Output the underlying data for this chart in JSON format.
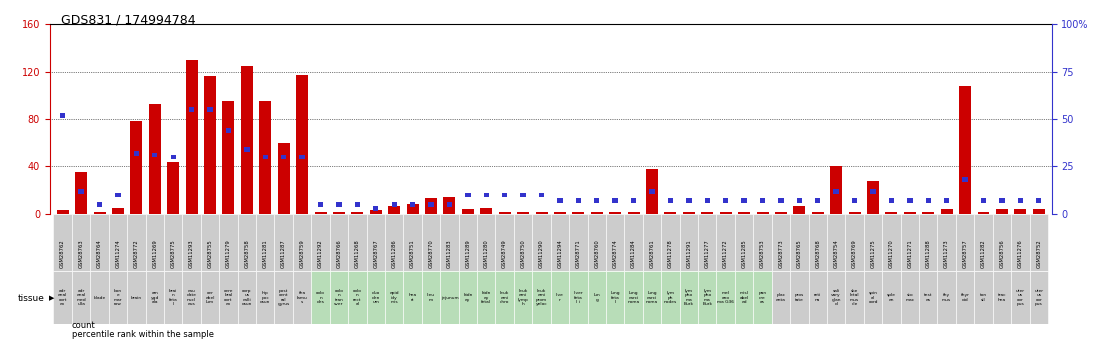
{
  "title": "GDS831 / 174994784",
  "samples": [
    "GSM28762",
    "GSM28763",
    "GSM28764",
    "GSM11274",
    "GSM28772",
    "GSM11269",
    "GSM28775",
    "GSM11293",
    "GSM28755",
    "GSM11279",
    "GSM28758",
    "GSM11281",
    "GSM11287",
    "GSM28759",
    "GSM11292",
    "GSM28766",
    "GSM11268",
    "GSM28767",
    "GSM11286",
    "GSM28751",
    "GSM28770",
    "GSM11283",
    "GSM11289",
    "GSM11280",
    "GSM28749",
    "GSM28750",
    "GSM11290",
    "GSM11294",
    "GSM28771",
    "GSM28760",
    "GSM28774",
    "GSM11284",
    "GSM28761",
    "GSM11278",
    "GSM11291",
    "GSM11277",
    "GSM11272",
    "GSM11285",
    "GSM28753",
    "GSM28773",
    "GSM28765",
    "GSM28768",
    "GSM28754",
    "GSM28769",
    "GSM11275",
    "GSM11270",
    "GSM11271",
    "GSM11288",
    "GSM11273",
    "GSM28757",
    "GSM11282",
    "GSM28756",
    "GSM11276",
    "GSM28752"
  ],
  "tissues_line1": [
    "adr",
    "adr",
    "",
    "bon",
    "",
    "am",
    "brai",
    "cau",
    "cer",
    "cere",
    "corp",
    "hip",
    "post",
    "tha",
    "colo",
    "colo",
    "colo",
    "duo",
    "epid",
    "hea",
    "lieu",
    "",
    "kidn",
    "kidn",
    "leuk",
    "leuk",
    "leuk",
    "live",
    "liver",
    "lun",
    "lung",
    "lung",
    "lung",
    "lym",
    "lym",
    "lym",
    "mel",
    "misl",
    "pan",
    "plac",
    "pros",
    "reti",
    "sali",
    "ske",
    "spin",
    "sple",
    "sto",
    "test",
    "thy",
    "thyr",
    "ton",
    "trac",
    "uter",
    "uter"
  ],
  "tissues_line2": [
    "enal",
    "enal",
    "blade",
    "e",
    "brain",
    "ygd",
    "n",
    "date",
    "ebel",
    "bral",
    "us",
    "poc",
    "cent",
    "lamu",
    "n",
    "n",
    "n",
    "den",
    "idy",
    "rt",
    "m",
    "jejunum",
    "ey",
    "ey",
    "emi",
    "emi",
    "emi",
    "r",
    "feta",
    "g",
    "feta",
    "carci",
    "carci",
    "ph",
    "pho",
    "pho",
    "ano",
    "abel",
    "cre",
    "enta",
    "tate",
    "na",
    "vary",
    "letal",
    "al",
    "en",
    "mac",
    "es",
    "mus",
    "oid",
    "sil",
    "hea",
    "us",
    "us"
  ],
  "tissues_line3": [
    "cort",
    "med",
    "",
    "mar",
    "",
    "ala",
    "feta",
    "nucl",
    "lum",
    "cort",
    "calli",
    "osun",
    "ral",
    "s",
    "des",
    "tran",
    "rect",
    "um",
    "mis",
    "",
    "",
    "",
    "",
    "fetal",
    "chro",
    "lymp",
    "prom",
    "",
    "l i",
    "",
    "l",
    "noma",
    "noma",
    "nodes",
    "ma",
    "ma",
    "ma G36",
    "ed",
    "as",
    "",
    "",
    "",
    "glan",
    "mus",
    "cord",
    "",
    "",
    "",
    "",
    "",
    "",
    "",
    "cor",
    "cor"
  ],
  "tissues_line4": [
    "ex",
    "ulla",
    "",
    "row",
    "",
    "",
    "l",
    "eus",
    "",
    "ex",
    "osun",
    "",
    "gyrus",
    "",
    "",
    "sver",
    "al",
    "",
    "",
    "",
    "",
    "",
    "",
    "",
    "",
    "h",
    "yeloc",
    "",
    "",
    "",
    "",
    "",
    "",
    "",
    "Burk",
    "Burk",
    "",
    "",
    "",
    "",
    "",
    "",
    "d",
    "cle",
    "",
    "",
    "",
    "",
    "",
    "",
    "",
    "",
    "pus",
    "pus"
  ],
  "counts": [
    3,
    35,
    2,
    5,
    78,
    93,
    44,
    130,
    116,
    95,
    125,
    95,
    60,
    117,
    2,
    2,
    2,
    3,
    7,
    8,
    13,
    14,
    4,
    5,
    2,
    2,
    2,
    2,
    2,
    2,
    2,
    2,
    38,
    2,
    2,
    2,
    2,
    2,
    2,
    2,
    7,
    2,
    40,
    2,
    28,
    2,
    2,
    2,
    4,
    108,
    2,
    4,
    4,
    4
  ],
  "percentile_ranks": [
    52,
    12,
    5,
    10,
    32,
    31,
    30,
    55,
    55,
    44,
    34,
    30,
    30,
    30,
    5,
    5,
    5,
    3,
    5,
    5,
    5,
    5,
    10,
    10,
    10,
    10,
    10,
    7,
    7,
    7,
    7,
    7,
    12,
    7,
    7,
    7,
    7,
    7,
    7,
    7,
    7,
    7,
    12,
    7,
    12,
    7,
    7,
    7,
    7,
    18,
    7,
    7,
    7,
    7
  ],
  "tissue_bg_green": [
    0,
    0,
    0,
    0,
    0,
    0,
    0,
    0,
    0,
    0,
    0,
    0,
    0,
    0,
    1,
    1,
    1,
    1,
    1,
    1,
    1,
    1,
    1,
    1,
    1,
    1,
    1,
    1,
    1,
    1,
    1,
    1,
    1,
    1,
    1,
    1,
    1,
    1,
    1,
    0,
    0,
    0,
    0,
    0,
    0,
    0,
    0,
    0,
    0,
    0,
    0,
    0,
    0,
    0
  ],
  "ylim_left": [
    0,
    160
  ],
  "ylim_right": [
    0,
    100
  ],
  "yticks_left": [
    0,
    40,
    80,
    120,
    160
  ],
  "yticks_right": [
    0,
    25,
    50,
    75,
    100
  ],
  "bar_color": "#cc0000",
  "percentile_color": "#3333cc",
  "title_color": "#000000",
  "axis_color_left": "#cc0000",
  "axis_color_right": "#3333cc",
  "percentile_scale": 1.6,
  "green_color": "#b8ddb8",
  "gray_color": "#cccccc"
}
